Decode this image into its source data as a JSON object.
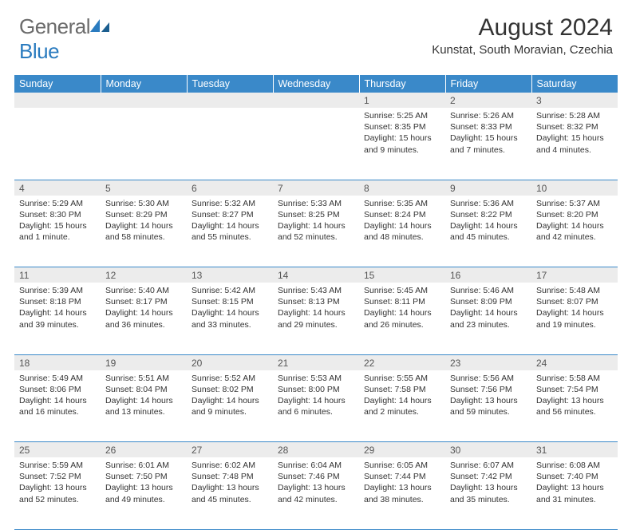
{
  "logo": {
    "word1": "General",
    "word2": "Blue"
  },
  "title": "August 2024",
  "location": "Kunstat, South Moravian, Czechia",
  "headers": [
    "Sunday",
    "Monday",
    "Tuesday",
    "Wednesday",
    "Thursday",
    "Friday",
    "Saturday"
  ],
  "colors": {
    "header_bg": "#3a89c9",
    "header_text": "#ffffff",
    "daynum_bg": "#ececec",
    "border": "#3a89c9",
    "logo_gray": "#6b6b6b",
    "logo_blue": "#2a7bbf",
    "text": "#333333"
  },
  "weeks": [
    [
      null,
      null,
      null,
      null,
      {
        "n": "1",
        "sr": "5:25 AM",
        "ss": "8:35 PM",
        "dl": "15 hours and 9 minutes."
      },
      {
        "n": "2",
        "sr": "5:26 AM",
        "ss": "8:33 PM",
        "dl": "15 hours and 7 minutes."
      },
      {
        "n": "3",
        "sr": "5:28 AM",
        "ss": "8:32 PM",
        "dl": "15 hours and 4 minutes."
      }
    ],
    [
      {
        "n": "4",
        "sr": "5:29 AM",
        "ss": "8:30 PM",
        "dl": "15 hours and 1 minute."
      },
      {
        "n": "5",
        "sr": "5:30 AM",
        "ss": "8:29 PM",
        "dl": "14 hours and 58 minutes."
      },
      {
        "n": "6",
        "sr": "5:32 AM",
        "ss": "8:27 PM",
        "dl": "14 hours and 55 minutes."
      },
      {
        "n": "7",
        "sr": "5:33 AM",
        "ss": "8:25 PM",
        "dl": "14 hours and 52 minutes."
      },
      {
        "n": "8",
        "sr": "5:35 AM",
        "ss": "8:24 PM",
        "dl": "14 hours and 48 minutes."
      },
      {
        "n": "9",
        "sr": "5:36 AM",
        "ss": "8:22 PM",
        "dl": "14 hours and 45 minutes."
      },
      {
        "n": "10",
        "sr": "5:37 AM",
        "ss": "8:20 PM",
        "dl": "14 hours and 42 minutes."
      }
    ],
    [
      {
        "n": "11",
        "sr": "5:39 AM",
        "ss": "8:18 PM",
        "dl": "14 hours and 39 minutes."
      },
      {
        "n": "12",
        "sr": "5:40 AM",
        "ss": "8:17 PM",
        "dl": "14 hours and 36 minutes."
      },
      {
        "n": "13",
        "sr": "5:42 AM",
        "ss": "8:15 PM",
        "dl": "14 hours and 33 minutes."
      },
      {
        "n": "14",
        "sr": "5:43 AM",
        "ss": "8:13 PM",
        "dl": "14 hours and 29 minutes."
      },
      {
        "n": "15",
        "sr": "5:45 AM",
        "ss": "8:11 PM",
        "dl": "14 hours and 26 minutes."
      },
      {
        "n": "16",
        "sr": "5:46 AM",
        "ss": "8:09 PM",
        "dl": "14 hours and 23 minutes."
      },
      {
        "n": "17",
        "sr": "5:48 AM",
        "ss": "8:07 PM",
        "dl": "14 hours and 19 minutes."
      }
    ],
    [
      {
        "n": "18",
        "sr": "5:49 AM",
        "ss": "8:06 PM",
        "dl": "14 hours and 16 minutes."
      },
      {
        "n": "19",
        "sr": "5:51 AM",
        "ss": "8:04 PM",
        "dl": "14 hours and 13 minutes."
      },
      {
        "n": "20",
        "sr": "5:52 AM",
        "ss": "8:02 PM",
        "dl": "14 hours and 9 minutes."
      },
      {
        "n": "21",
        "sr": "5:53 AM",
        "ss": "8:00 PM",
        "dl": "14 hours and 6 minutes."
      },
      {
        "n": "22",
        "sr": "5:55 AM",
        "ss": "7:58 PM",
        "dl": "14 hours and 2 minutes."
      },
      {
        "n": "23",
        "sr": "5:56 AM",
        "ss": "7:56 PM",
        "dl": "13 hours and 59 minutes."
      },
      {
        "n": "24",
        "sr": "5:58 AM",
        "ss": "7:54 PM",
        "dl": "13 hours and 56 minutes."
      }
    ],
    [
      {
        "n": "25",
        "sr": "5:59 AM",
        "ss": "7:52 PM",
        "dl": "13 hours and 52 minutes."
      },
      {
        "n": "26",
        "sr": "6:01 AM",
        "ss": "7:50 PM",
        "dl": "13 hours and 49 minutes."
      },
      {
        "n": "27",
        "sr": "6:02 AM",
        "ss": "7:48 PM",
        "dl": "13 hours and 45 minutes."
      },
      {
        "n": "28",
        "sr": "6:04 AM",
        "ss": "7:46 PM",
        "dl": "13 hours and 42 minutes."
      },
      {
        "n": "29",
        "sr": "6:05 AM",
        "ss": "7:44 PM",
        "dl": "13 hours and 38 minutes."
      },
      {
        "n": "30",
        "sr": "6:07 AM",
        "ss": "7:42 PM",
        "dl": "13 hours and 35 minutes."
      },
      {
        "n": "31",
        "sr": "6:08 AM",
        "ss": "7:40 PM",
        "dl": "13 hours and 31 minutes."
      }
    ]
  ],
  "labels": {
    "sunrise": "Sunrise: ",
    "sunset": "Sunset: ",
    "daylight": "Daylight: "
  }
}
